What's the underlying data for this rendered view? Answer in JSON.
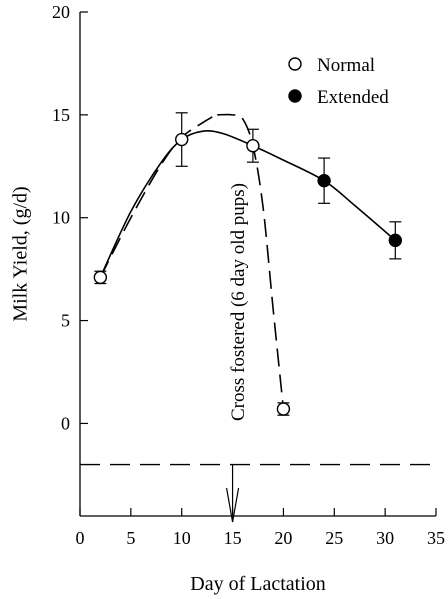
{
  "chart_data": {
    "type": "scatter",
    "title": "",
    "xlabel": "Day of Lactation",
    "ylabel": "Milk Yield, (g/d)",
    "xlim": [
      0,
      35
    ],
    "ylim": [
      -4.5,
      20
    ],
    "x_ticks": [
      "0",
      "5",
      "10",
      "15",
      "20",
      "25",
      "30",
      "35"
    ],
    "y_ticks": [
      "0",
      "5",
      "10",
      "15",
      "20"
    ],
    "grid": false,
    "legend_position": "top-right",
    "series": [
      {
        "name": "Normal",
        "marker": "open-circle",
        "points": [
          {
            "x": 2,
            "y": 7.1,
            "err": 0.3
          },
          {
            "x": 10,
            "y": 13.8,
            "err": 1.3
          },
          {
            "x": 17,
            "y": 13.5,
            "err": 0.8
          },
          {
            "x": 20,
            "y": 0.7,
            "err": 0.3
          }
        ]
      },
      {
        "name": "Extended",
        "marker": "filled-circle",
        "points": [
          {
            "x": 24,
            "y": 11.8,
            "err": 1.1
          },
          {
            "x": 31,
            "y": 8.9,
            "err": 0.9
          }
        ]
      }
    ],
    "fit_curves": [
      {
        "style": "solid",
        "points": [
          [
            2,
            7.1
          ],
          [
            5,
            10.3
          ],
          [
            8,
            12.7
          ],
          [
            10,
            13.8
          ],
          [
            12,
            14.2
          ],
          [
            14,
            14.1
          ],
          [
            17,
            13.5
          ],
          [
            20,
            12.8
          ],
          [
            24,
            11.8
          ],
          [
            27,
            10.6
          ],
          [
            31,
            8.9
          ]
        ]
      },
      {
        "style": "dashed",
        "points": [
          [
            2,
            7.1
          ],
          [
            5,
            10.0
          ],
          [
            8,
            12.6
          ],
          [
            10,
            13.9
          ],
          [
            12,
            14.6
          ],
          [
            13,
            14.9
          ]
        ]
      },
      {
        "style": "dashed",
        "points": [
          [
            13.5,
            15.0
          ],
          [
            15,
            15.0
          ],
          [
            16,
            14.8
          ],
          [
            17,
            13.5
          ],
          [
            18,
            10.5
          ],
          [
            19,
            5.5
          ],
          [
            20,
            0.7
          ]
        ]
      }
    ],
    "baseline": {
      "y": -2,
      "style": "dashed"
    },
    "annotation": {
      "text": "Cross fostered (6 day old pups)",
      "x": 15
    }
  }
}
